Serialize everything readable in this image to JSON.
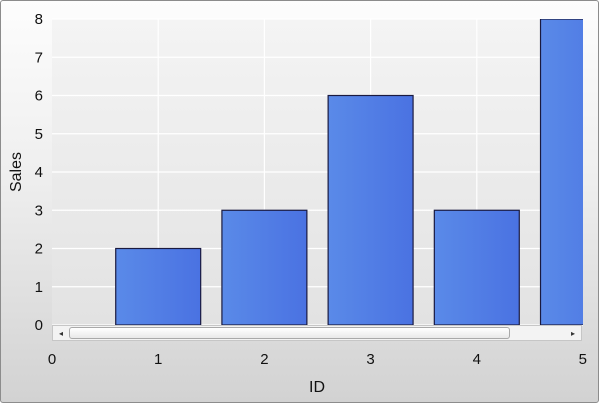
{
  "chart_data": {
    "type": "bar",
    "categories": [
      "1",
      "2",
      "3",
      "4",
      "5"
    ],
    "x": [
      1,
      2,
      3,
      4,
      5
    ],
    "values": [
      2,
      3,
      6,
      3,
      8
    ],
    "xlabel": "ID",
    "ylabel": "Sales",
    "xlim": [
      0,
      5
    ],
    "ylim": [
      0,
      8
    ],
    "x_ticks": [
      "0",
      "1",
      "2",
      "3",
      "4",
      "5"
    ],
    "y_ticks": [
      "0",
      "1",
      "2",
      "3",
      "4",
      "5",
      "6",
      "7",
      "8"
    ],
    "grid": true,
    "legend": "none",
    "bar_color": "#4f7fe6",
    "bar_outline": "#1a1a40",
    "has_horizontal_scrollbar": true
  },
  "scrollbar": {
    "left_arrow": "◂",
    "right_arrow": "▸"
  }
}
